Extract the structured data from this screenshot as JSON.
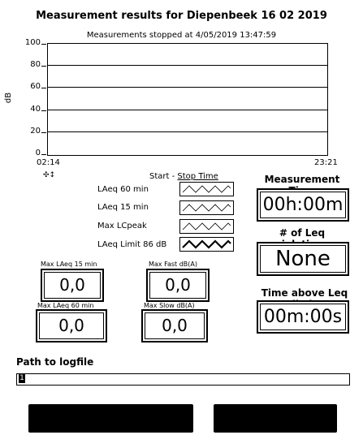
{
  "header": {
    "title": "Measurement results for Diepenbeek 16 02 2019",
    "subtitle": "Measurements stopped at 4/05/2019 13:47:59"
  },
  "chart_data": {
    "type": "line",
    "title": "",
    "ylabel": "dB",
    "xlabel": "",
    "ylim": [
      0,
      100
    ],
    "yticks": [
      "100",
      "80",
      "60",
      "40",
      "20",
      "0"
    ],
    "xticks": [
      "02:14",
      "23:21"
    ],
    "grid": true,
    "series": []
  },
  "tools": {
    "icons": [
      "pan-icon",
      "zoom-icon"
    ],
    "glyph": "✣ ↕"
  },
  "legend": {
    "header_start": "Start - ",
    "header_stop": "Stop Time",
    "items": [
      {
        "label": "LAeq 60 min",
        "style": "thin"
      },
      {
        "label": "LAeq 15 min",
        "style": "thin"
      },
      {
        "label": "Max LCpeak",
        "style": "thin"
      },
      {
        "label": "LAeq Limit 86 dB",
        "style": "thick"
      }
    ]
  },
  "measurement_time": {
    "label": "Measurement Time",
    "value": "00h:00m"
  },
  "leq_violations": {
    "label": "# of Leq violations",
    "value": "None"
  },
  "time_above": {
    "label": "Time above Leq limit",
    "value": "00m:00s"
  },
  "indicators": [
    {
      "label": "Max LAeq 15 min",
      "value": "0,0"
    },
    {
      "label": "Max Fast dB(A)",
      "value": "0,0"
    },
    {
      "label": "Max LAeq 60 min",
      "value": "0,0"
    },
    {
      "label": "Max  Slow dB(A)",
      "value": "0,0"
    }
  ],
  "path": {
    "label": "Path to logfile",
    "value": ""
  },
  "buttons": {
    "left_label": "",
    "right_label": ""
  }
}
